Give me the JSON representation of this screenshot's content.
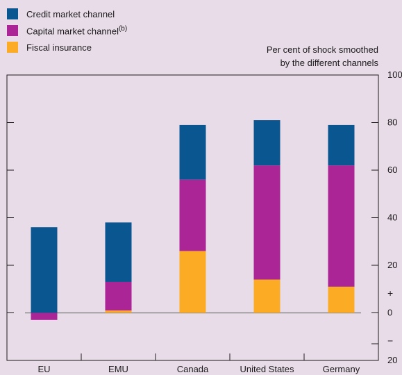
{
  "legend": {
    "items": [
      {
        "label": "Credit market channel",
        "color": "#0a5690"
      },
      {
        "label": "Capital market channel",
        "superscript": "(b)",
        "color": "#ab2597"
      },
      {
        "label": "Fiscal insurance",
        "color": "#fbab24"
      }
    ]
  },
  "unit_note": {
    "line1": "Per cent of shock smoothed",
    "line2": "by the different channels"
  },
  "chart_data": {
    "type": "bar",
    "stacked": true,
    "categories": [
      "EU",
      "EMU",
      "Canada",
      "United States",
      "Germany"
    ],
    "series": [
      {
        "name": "Fiscal insurance",
        "color": "#fbab24",
        "values": [
          0,
          1,
          26,
          14,
          11
        ]
      },
      {
        "name": "Capital market channel",
        "color": "#ab2597",
        "values": [
          -3,
          12,
          30,
          48,
          51
        ]
      },
      {
        "name": "Credit market channel",
        "color": "#0a5690",
        "values": [
          36,
          25,
          23,
          19,
          17
        ]
      }
    ],
    "ylim": [
      -20,
      100
    ],
    "yticks": [
      100,
      80,
      60,
      40,
      20,
      0
    ],
    "ytick_labels": [
      "100",
      "80",
      "60",
      "40",
      "20",
      "0"
    ],
    "bottom_tick_label": "20",
    "plus_sign": "+",
    "minus_sign": "−",
    "grid": false,
    "zero_line": true,
    "colors": {
      "background": "#e9dce9",
      "axis": "#1a1a1a",
      "zero_line": "#8a8a8a"
    }
  }
}
